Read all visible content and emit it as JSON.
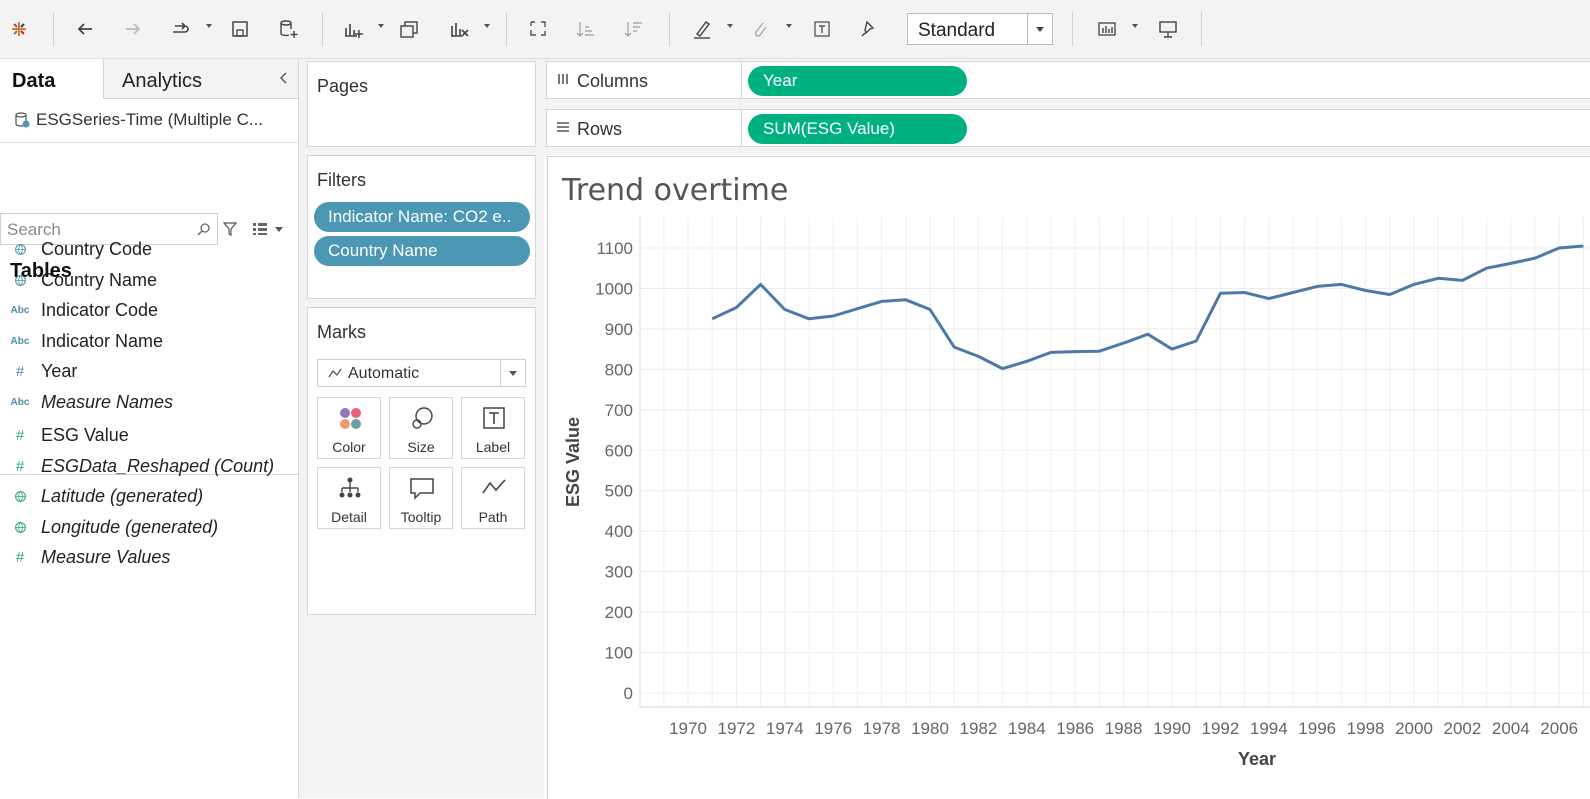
{
  "toolbar": {
    "buttons": [
      {
        "name": "tableau-logo-icon",
        "dropdown": false
      },
      {
        "name": "back-icon",
        "dropdown": false
      },
      {
        "name": "forward-icon",
        "dropdown": false
      },
      {
        "name": "redo-icon",
        "dropdown": true
      },
      {
        "name": "save-icon",
        "dropdown": false
      },
      {
        "name": "new-datasource-icon",
        "dropdown": false
      },
      {
        "name": "new-worksheet-icon",
        "dropdown": true
      },
      {
        "name": "duplicate-sheet-icon",
        "dropdown": false
      },
      {
        "name": "clear-sheet-icon",
        "dropdown": true
      },
      {
        "name": "swap-rows-columns-icon",
        "dropdown": false
      },
      {
        "name": "sort-ascending-icon",
        "dropdown": false
      },
      {
        "name": "sort-descending-icon",
        "dropdown": false
      },
      {
        "name": "highlight-icon",
        "dropdown": true
      },
      {
        "name": "group-icon",
        "dropdown": true
      },
      {
        "name": "show-mark-labels-icon",
        "dropdown": false
      },
      {
        "name": "fix-axes-icon",
        "dropdown": false
      },
      {
        "name": "show-me-icon",
        "dropdown": true
      },
      {
        "name": "presentation-mode-icon",
        "dropdown": false
      }
    ],
    "fit_select": {
      "value": "Standard"
    }
  },
  "data_pane": {
    "tabs": [
      {
        "label": "Data",
        "active": true
      },
      {
        "label": "Analytics",
        "active": false
      }
    ],
    "datasource": "ESGSeries-Time (Multiple C...",
    "search": {
      "placeholder": "Search",
      "value": ""
    },
    "tables_heading": "Tables",
    "dimensions": [
      {
        "label": "Country Code",
        "icon": "globe-icon",
        "italic": false
      },
      {
        "label": "Country Name",
        "icon": "globe-icon",
        "italic": false
      },
      {
        "label": "Indicator Code",
        "icon": "abc-icon",
        "italic": false
      },
      {
        "label": "Indicator Name",
        "icon": "abc-icon",
        "italic": false
      },
      {
        "label": "Year",
        "icon": "hash-icon",
        "italic": false
      },
      {
        "label": "Measure Names",
        "icon": "abc-icon",
        "italic": true
      }
    ],
    "measures": [
      {
        "label": "ESG Value",
        "icon": "hash-icon",
        "italic": false
      },
      {
        "label": "ESGData_Reshaped (Count)",
        "icon": "hash-icon",
        "italic": true
      },
      {
        "label": "Latitude (generated)",
        "icon": "globe-icon",
        "italic": true
      },
      {
        "label": "Longitude (generated)",
        "icon": "globe-icon",
        "italic": true
      },
      {
        "label": "Measure Values",
        "icon": "hash-icon",
        "italic": true
      }
    ]
  },
  "cards": {
    "pages_title": "Pages",
    "filters_title": "Filters",
    "filters": [
      "Indicator Name: CO2 e..",
      "Country Name"
    ],
    "marks_title": "Marks",
    "marks_type": "Automatic",
    "mark_buttons": [
      {
        "label": "Color",
        "icon": "color-icon"
      },
      {
        "label": "Size",
        "icon": "size-icon"
      },
      {
        "label": "Label",
        "icon": "label-icon"
      },
      {
        "label": "Detail",
        "icon": "detail-icon"
      },
      {
        "label": "Tooltip",
        "icon": "tooltip-icon"
      },
      {
        "label": "Path",
        "icon": "path-icon"
      }
    ]
  },
  "shelves": {
    "columns": {
      "label": "Columns",
      "pill": "Year"
    },
    "rows": {
      "label": "Rows",
      "pill": "SUM(ESG Value)"
    }
  },
  "viz": {
    "title": "Trend overtime"
  },
  "chart_data": {
    "type": "line",
    "title": "Trend overtime",
    "xlabel": "Year",
    "ylabel": "ESG Value",
    "ylim": [
      0,
      1100
    ],
    "yticks": [
      0,
      100,
      200,
      300,
      400,
      500,
      600,
      700,
      800,
      900,
      1000,
      1100
    ],
    "xticks": [
      1970,
      1972,
      1974,
      1976,
      1978,
      1980,
      1982,
      1984,
      1986,
      1988,
      1990,
      1992,
      1994,
      1996,
      1998,
      2000,
      2002,
      2004,
      2006
    ],
    "grid": true,
    "color": "#4e79a7",
    "series": [
      {
        "x": [
          1971,
          1972,
          1973,
          1974,
          1975,
          1976,
          1977,
          1978,
          1979,
          1980,
          1981,
          1982,
          1983,
          1984,
          1985,
          1986,
          1987,
          1988,
          1989,
          1990,
          1991,
          1992,
          1993,
          1994,
          1995,
          1996,
          1997,
          1998,
          1999,
          2000,
          2001,
          2002,
          2003,
          2004,
          2005,
          2006,
          2007
        ],
        "values": [
          925,
          953,
          1010,
          948,
          925,
          932,
          950,
          968,
          972,
          948,
          855,
          832,
          802,
          820,
          842,
          844,
          845,
          865,
          887,
          850,
          870,
          988,
          990,
          975,
          990,
          1005,
          1010,
          995,
          985,
          1010,
          1025,
          1020,
          1050,
          1062,
          1075,
          1100,
          1105
        ]
      }
    ]
  },
  "colors": {
    "shelf_pill": "#00b180",
    "filter_pill": "#4b97b4",
    "line": "#4e79a7"
  }
}
